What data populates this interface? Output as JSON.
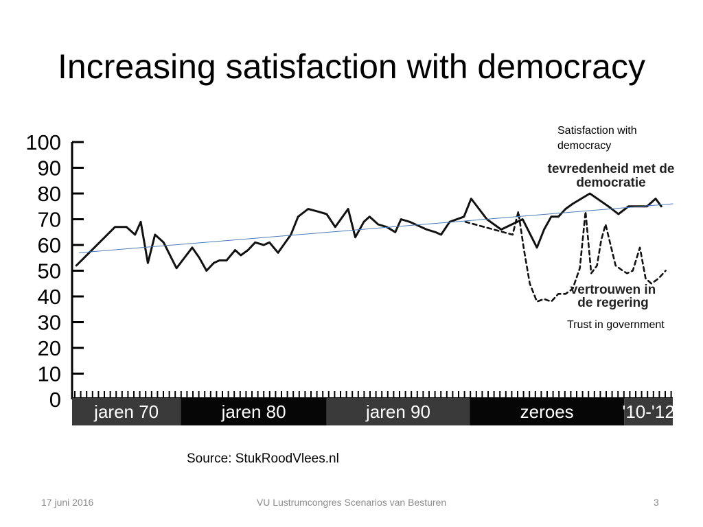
{
  "slide": {
    "title": "Increasing satisfaction with democracy",
    "annotation_satisfaction": "Satisfaction with democracy",
    "annotation_trust": "Trust in government",
    "source": "Source: StukRoodVlees.nl"
  },
  "footer": {
    "date": "17 juni 2016",
    "event": "VU Lustrumcongres Scenarios van Besturen",
    "page": "3"
  },
  "chart_data": {
    "type": "line",
    "title": "",
    "xlabel": "",
    "ylabel": "",
    "ylim": [
      0,
      100
    ],
    "xlim": [
      1971,
      2013
    ],
    "yticks": [
      "0",
      "10",
      "20",
      "30",
      "40",
      "50",
      "60",
      "70",
      "80",
      "90",
      "100"
    ],
    "periods": [
      {
        "label": "jaren 70",
        "start": 1971,
        "end": 1978.6
      },
      {
        "label": "jaren 80",
        "start": 1978.6,
        "end": 1988.8
      },
      {
        "label": "jaren 90",
        "start": 1988.8,
        "end": 1998.8
      },
      {
        "label": "zeroes",
        "start": 1998.8,
        "end": 2009.6
      },
      {
        "label": "'10-'12",
        "start": 2009.6,
        "end": 2013
      }
    ],
    "series": [
      {
        "name": "tevredenheid met de democratie",
        "style": "solid",
        "color": "#111111",
        "x": [
          1971.3,
          1974.0,
          1974.8,
          1975.4,
          1975.8,
          1976.3,
          1976.8,
          1977.4,
          1978.3,
          1979.4,
          1979.9,
          1980.4,
          1980.9,
          1981.3,
          1981.8,
          1982.4,
          1982.8,
          1983.3,
          1983.8,
          1984.4,
          1984.8,
          1985.4,
          1986.3,
          1986.8,
          1987.5,
          1988.2,
          1988.8,
          1989.4,
          1990.3,
          1990.8,
          1991.4,
          1991.8,
          1992.4,
          1993.0,
          1993.6,
          1994.0,
          1994.6,
          1995.4,
          1995.8,
          1996.4,
          1996.8,
          1997.4,
          1998.4,
          1998.9,
          2000.0,
          2001.0,
          2002.5,
          2003.5,
          2004.0,
          2004.5,
          2005.0,
          2005.5,
          2006.0,
          2007.2,
          2008.5,
          2009.2,
          2009.9,
          2010.4,
          2011.2,
          2011.8,
          2012.2
        ],
        "values": [
          52,
          67,
          67,
          64,
          69,
          53,
          64,
          61,
          51,
          59,
          55,
          50,
          53,
          54,
          54,
          58,
          56,
          58,
          61,
          60,
          61,
          57,
          64,
          71,
          74,
          73,
          72,
          67,
          74,
          63,
          69,
          71,
          68,
          67,
          65,
          70,
          69,
          67,
          66,
          65,
          64,
          69,
          71,
          78,
          70,
          66,
          70,
          59,
          66,
          71,
          71,
          74,
          76,
          80,
          75,
          72,
          75,
          75,
          75,
          78,
          75
        ]
      },
      {
        "name": "vertrouwen in de regering",
        "style": "dashed",
        "color": "#111111",
        "x": [
          1998.5,
          2001.8,
          2002.2,
          2002.6,
          2003.0,
          2003.5,
          2004.0,
          2004.5,
          2005.0,
          2005.5,
          2006.0,
          2006.5,
          2006.9,
          2007.3,
          2007.7,
          2008.0,
          2008.3,
          2009.0,
          2009.5,
          2009.8,
          2010.2,
          2010.7,
          2011.1,
          2011.5,
          2012.0,
          2012.5
        ],
        "values": [
          69,
          64,
          73,
          58,
          45,
          38,
          39,
          38,
          41,
          41,
          43,
          51,
          73,
          49,
          52,
          62,
          68,
          52,
          50,
          49,
          50,
          59,
          47,
          45,
          47,
          50
        ]
      },
      {
        "name": "trend",
        "style": "thin",
        "color": "#4a7ab5",
        "x": [
          1971.5,
          2013.0
        ],
        "values": [
          57,
          76
        ]
      }
    ],
    "annotations": [
      "tevredenheid met de democratie",
      "vertrouwen in de regering"
    ]
  }
}
